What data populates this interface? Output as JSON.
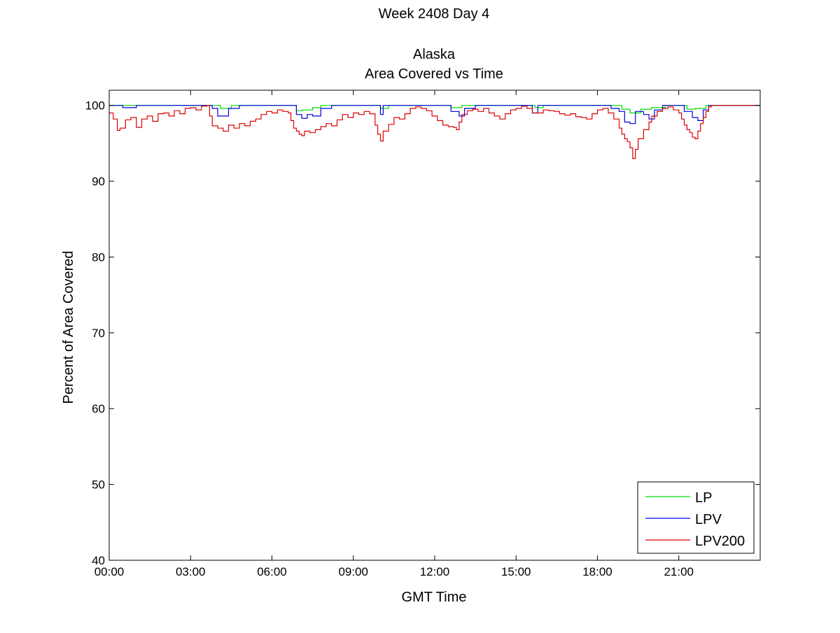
{
  "chart_data": {
    "type": "line",
    "title_lines": [
      "Week 2408 Day 4",
      "Alaska",
      "Area Covered vs Time"
    ],
    "xlabel": "GMT Time",
    "ylabel": "Percent of Area Covered",
    "xlim": [
      0,
      24
    ],
    "ylim": [
      40,
      102
    ],
    "x_ticks": [
      0,
      3,
      6,
      9,
      12,
      15,
      18,
      21
    ],
    "x_tick_labels": [
      "00:00",
      "03:00",
      "06:00",
      "09:00",
      "12:00",
      "15:00",
      "18:00",
      "21:00"
    ],
    "y_ticks": [
      40,
      50,
      60,
      70,
      80,
      90,
      100
    ],
    "y_tick_labels": [
      "40",
      "50",
      "60",
      "70",
      "80",
      "90",
      "100"
    ],
    "grid": false,
    "legend_position": "bottom-right",
    "series": [
      {
        "name": "LP",
        "color": "#00dd00",
        "points": [
          [
            0,
            100
          ],
          [
            1,
            100
          ],
          [
            2,
            100
          ],
          [
            3,
            100
          ],
          [
            3.8,
            100
          ],
          [
            4.1,
            99.6
          ],
          [
            4.5,
            100
          ],
          [
            5,
            100
          ],
          [
            6.5,
            100
          ],
          [
            6.9,
            99.3
          ],
          [
            7.1,
            99.4
          ],
          [
            7.5,
            99.7
          ],
          [
            7.8,
            100
          ],
          [
            9,
            100
          ],
          [
            9.8,
            100
          ],
          [
            10.0,
            99.6
          ],
          [
            10.3,
            100
          ],
          [
            12,
            100
          ],
          [
            12.6,
            99.7
          ],
          [
            13,
            100
          ],
          [
            15,
            100
          ],
          [
            15.7,
            99.7
          ],
          [
            16,
            100
          ],
          [
            17,
            100
          ],
          [
            18,
            100
          ],
          [
            18.5,
            100
          ],
          [
            18.9,
            99.5
          ],
          [
            19.2,
            99.0
          ],
          [
            19.6,
            99.5
          ],
          [
            20.0,
            99.7
          ],
          [
            20.5,
            100
          ],
          [
            21.0,
            100
          ],
          [
            21.3,
            99.5
          ],
          [
            21.6,
            99.6
          ],
          [
            22.0,
            100
          ],
          [
            22.5,
            100
          ],
          [
            24,
            100
          ]
        ]
      },
      {
        "name": "LPV",
        "color": "#0000dd",
        "points": [
          [
            0,
            100
          ],
          [
            0.5,
            99.7
          ],
          [
            1,
            100
          ],
          [
            2,
            100
          ],
          [
            3,
            100
          ],
          [
            3.8,
            99.6
          ],
          [
            4.0,
            98.6
          ],
          [
            4.2,
            98.6
          ],
          [
            4.4,
            99.6
          ],
          [
            4.8,
            100
          ],
          [
            5.5,
            100
          ],
          [
            6.5,
            100
          ],
          [
            6.9,
            98.8
          ],
          [
            7.1,
            98.3
          ],
          [
            7.3,
            98.8
          ],
          [
            7.5,
            98.6
          ],
          [
            7.8,
            99.6
          ],
          [
            8.2,
            100
          ],
          [
            9,
            100
          ],
          [
            9.8,
            100
          ],
          [
            10.0,
            98.8
          ],
          [
            10.1,
            100
          ],
          [
            11,
            100
          ],
          [
            12,
            100
          ],
          [
            12.6,
            99.2
          ],
          [
            12.9,
            98.6
          ],
          [
            13.1,
            99.6
          ],
          [
            13.5,
            100
          ],
          [
            15,
            100
          ],
          [
            15.6,
            99.0
          ],
          [
            15.8,
            100
          ],
          [
            16.5,
            100
          ],
          [
            17,
            100
          ],
          [
            18,
            100
          ],
          [
            18.5,
            99.6
          ],
          [
            18.8,
            99.2
          ],
          [
            19.0,
            97.8
          ],
          [
            19.2,
            97.6
          ],
          [
            19.4,
            99.2
          ],
          [
            19.7,
            98.8
          ],
          [
            19.9,
            98.2
          ],
          [
            20.1,
            99.4
          ],
          [
            20.4,
            100
          ],
          [
            21,
            100
          ],
          [
            21.2,
            99.2
          ],
          [
            21.5,
            98.4
          ],
          [
            21.7,
            98.0
          ],
          [
            21.9,
            99.4
          ],
          [
            22.1,
            100
          ],
          [
            24,
            100
          ]
        ]
      },
      {
        "name": "LPV200",
        "color": "#dd0000",
        "points": [
          [
            0,
            99.0
          ],
          [
            0.15,
            98.2
          ],
          [
            0.3,
            96.7
          ],
          [
            0.4,
            97.0
          ],
          [
            0.6,
            98.1
          ],
          [
            0.8,
            98.4
          ],
          [
            1.0,
            97.1
          ],
          [
            1.2,
            98.2
          ],
          [
            1.4,
            98.6
          ],
          [
            1.6,
            97.9
          ],
          [
            1.8,
            98.9
          ],
          [
            2.0,
            99.0
          ],
          [
            2.2,
            98.6
          ],
          [
            2.4,
            99.3
          ],
          [
            2.6,
            98.9
          ],
          [
            2.8,
            99.6
          ],
          [
            3.0,
            99.7
          ],
          [
            3.2,
            99.4
          ],
          [
            3.4,
            99.9
          ],
          [
            3.6,
            100
          ],
          [
            3.7,
            98.6
          ],
          [
            3.8,
            97.3
          ],
          [
            4.0,
            97.0
          ],
          [
            4.2,
            96.6
          ],
          [
            4.4,
            97.4
          ],
          [
            4.6,
            97.0
          ],
          [
            4.8,
            97.6
          ],
          [
            5.0,
            97.3
          ],
          [
            5.2,
            97.9
          ],
          [
            5.4,
            98.2
          ],
          [
            5.6,
            98.8
          ],
          [
            5.8,
            99.2
          ],
          [
            6.0,
            99.0
          ],
          [
            6.2,
            99.4
          ],
          [
            6.4,
            99.2
          ],
          [
            6.6,
            99.0
          ],
          [
            6.7,
            98.0
          ],
          [
            6.8,
            97.0
          ],
          [
            6.9,
            96.6
          ],
          [
            7.0,
            96.2
          ],
          [
            7.1,
            96.0
          ],
          [
            7.2,
            96.6
          ],
          [
            7.4,
            96.4
          ],
          [
            7.6,
            96.8
          ],
          [
            7.8,
            97.2
          ],
          [
            8.0,
            97.6
          ],
          [
            8.2,
            97.3
          ],
          [
            8.4,
            98.1
          ],
          [
            8.6,
            98.8
          ],
          [
            8.8,
            98.4
          ],
          [
            9.0,
            99.0
          ],
          [
            9.2,
            98.8
          ],
          [
            9.4,
            99.2
          ],
          [
            9.6,
            98.9
          ],
          [
            9.8,
            97.4
          ],
          [
            9.9,
            96.2
          ],
          [
            10.0,
            95.3
          ],
          [
            10.1,
            96.6
          ],
          [
            10.3,
            97.5
          ],
          [
            10.5,
            98.4
          ],
          [
            10.7,
            98.2
          ],
          [
            10.9,
            98.9
          ],
          [
            11.1,
            99.6
          ],
          [
            11.3,
            99.8
          ],
          [
            11.5,
            99.6
          ],
          [
            11.7,
            99.3
          ],
          [
            11.9,
            98.6
          ],
          [
            12.1,
            98.0
          ],
          [
            12.3,
            97.4
          ],
          [
            12.5,
            97.2
          ],
          [
            12.7,
            97.1
          ],
          [
            12.8,
            96.8
          ],
          [
            12.9,
            97.8
          ],
          [
            13.0,
            98.8
          ],
          [
            13.2,
            99.3
          ],
          [
            13.4,
            99.5
          ],
          [
            13.6,
            99.2
          ],
          [
            13.8,
            99.6
          ],
          [
            14.0,
            99.0
          ],
          [
            14.2,
            98.6
          ],
          [
            14.4,
            98.2
          ],
          [
            14.6,
            98.9
          ],
          [
            14.8,
            99.4
          ],
          [
            15.0,
            99.6
          ],
          [
            15.2,
            99.9
          ],
          [
            15.4,
            99.6
          ],
          [
            15.6,
            99.0
          ],
          [
            15.8,
            99.0
          ],
          [
            16.0,
            99.4
          ],
          [
            16.2,
            99.3
          ],
          [
            16.4,
            99.2
          ],
          [
            16.6,
            98.9
          ],
          [
            16.8,
            98.7
          ],
          [
            17.0,
            98.9
          ],
          [
            17.2,
            98.5
          ],
          [
            17.4,
            98.4
          ],
          [
            17.6,
            98.2
          ],
          [
            17.8,
            98.9
          ],
          [
            18.0,
            99.4
          ],
          [
            18.2,
            99.6
          ],
          [
            18.4,
            99.0
          ],
          [
            18.6,
            98.2
          ],
          [
            18.8,
            97.0
          ],
          [
            18.9,
            96.2
          ],
          [
            19.0,
            95.6
          ],
          [
            19.1,
            95.2
          ],
          [
            19.2,
            94.4
          ],
          [
            19.3,
            93.0
          ],
          [
            19.4,
            94.2
          ],
          [
            19.5,
            95.6
          ],
          [
            19.7,
            96.8
          ],
          [
            19.9,
            97.8
          ],
          [
            20.0,
            98.6
          ],
          [
            20.2,
            99.2
          ],
          [
            20.4,
            99.6
          ],
          [
            20.6,
            99.8
          ],
          [
            20.8,
            99.4
          ],
          [
            21.0,
            99.0
          ],
          [
            21.1,
            98.2
          ],
          [
            21.2,
            97.4
          ],
          [
            21.3,
            96.8
          ],
          [
            21.4,
            96.4
          ],
          [
            21.5,
            95.8
          ],
          [
            21.6,
            95.6
          ],
          [
            21.7,
            96.6
          ],
          [
            21.8,
            97.6
          ],
          [
            21.9,
            98.4
          ],
          [
            22.0,
            99.2
          ],
          [
            22.1,
            99.8
          ],
          [
            22.2,
            100
          ],
          [
            24,
            100
          ]
        ]
      }
    ]
  }
}
